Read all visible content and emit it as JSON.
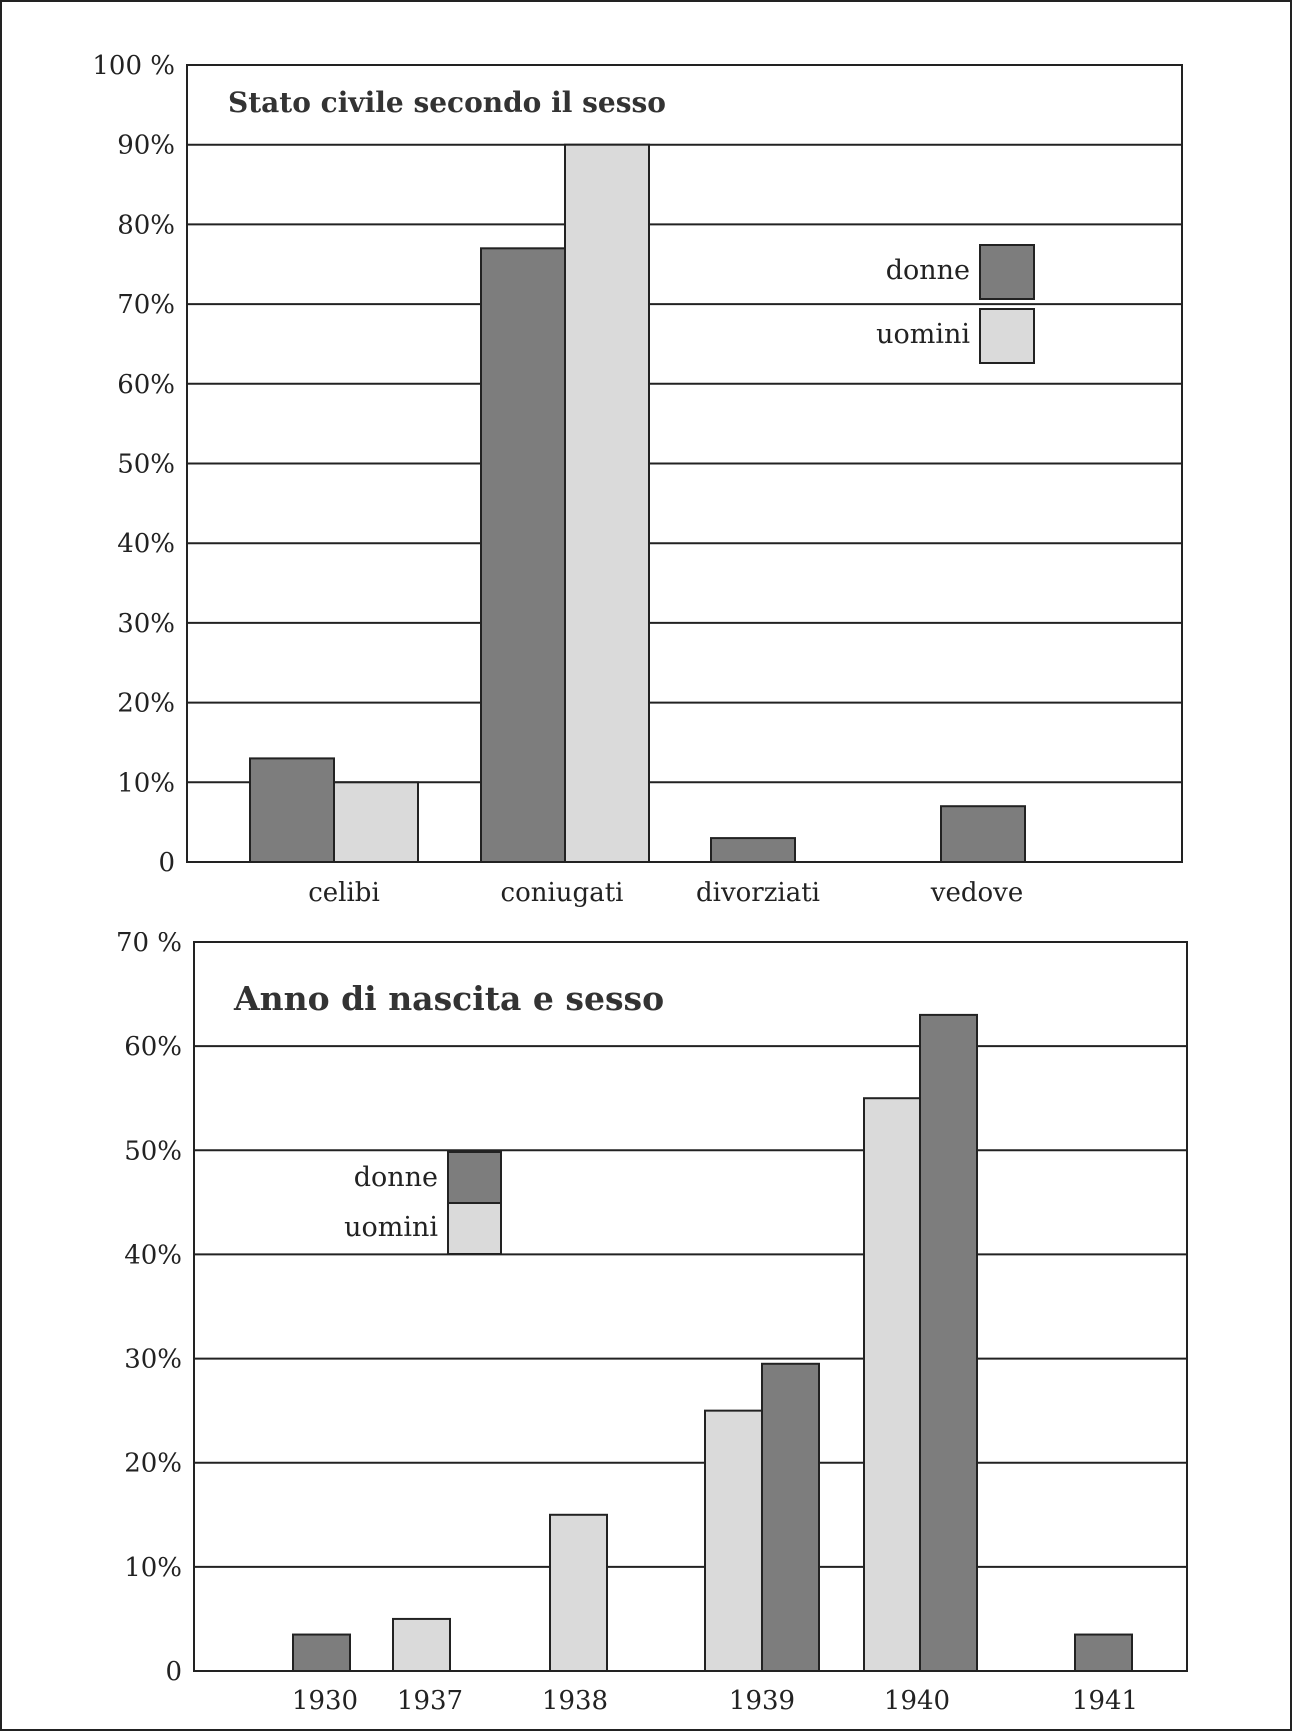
{
  "colors": {
    "donne": "#7d7d7d",
    "uomini": "#dadada",
    "grid": "#222222",
    "text": "#222222"
  },
  "chart_data": [
    {
      "type": "bar",
      "title": "Stato civile secondo il sesso",
      "xlabel": "",
      "ylabel": "",
      "ylim": [
        0,
        100
      ],
      "grid": true,
      "legend_position": "top-right",
      "yticks": [
        "0",
        "10%",
        "20%",
        "30%",
        "40%",
        "50%",
        "60%",
        "70%",
        "80%",
        "90%",
        "100 %"
      ],
      "categories": [
        "celibi",
        "coniugati",
        "divorziati",
        "vedove"
      ],
      "series": [
        {
          "name": "donne",
          "values": [
            13,
            77,
            3,
            7
          ]
        },
        {
          "name": "uomini",
          "values": [
            10,
            90,
            null,
            null
          ]
        }
      ]
    },
    {
      "type": "bar",
      "title": "Anno di nascita e sesso",
      "xlabel": "",
      "ylabel": "",
      "ylim": [
        0,
        70
      ],
      "grid": true,
      "legend_position": "top-left",
      "yticks": [
        "0",
        "10%",
        "20%",
        "30%",
        "40%",
        "50%",
        "60%",
        "70 %"
      ],
      "categories": [
        "1930",
        "1937",
        "1938",
        "1939",
        "1940",
        "1941"
      ],
      "series": [
        {
          "name": "uomini",
          "values": [
            null,
            5,
            15,
            25,
            55,
            null
          ]
        },
        {
          "name": "donne",
          "values": [
            3.5,
            null,
            null,
            29.5,
            63,
            3.5
          ]
        }
      ]
    }
  ]
}
